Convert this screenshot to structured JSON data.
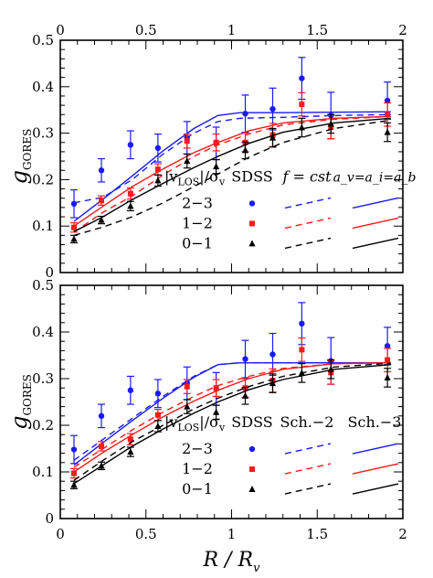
{
  "chart_data": [
    {
      "type": "line",
      "panel": "top",
      "xlim": [
        0,
        2
      ],
      "ylim": [
        0,
        0.5
      ],
      "xticks": [
        "0",
        "0.5",
        "1",
        "1.5",
        "2"
      ],
      "yticks": [
        "0.1",
        "0.2",
        "0.3",
        "0.4",
        "0.5"
      ],
      "y0_label": "0",
      "ylabel_main": "g",
      "ylabel_sub": "GORES",
      "legend": {
        "header_col1_main": "|v",
        "header_col1_sub": "LOS",
        "header_col1_rest": "|/σ",
        "header_col1_sub2": "v",
        "header_col2": "SDSS",
        "header_col3": "f = cst",
        "header_col4": "a_v=a_i=a_b",
        "rows": [
          "2−3",
          "1−2",
          "0−1"
        ]
      },
      "series": [
        {
          "name": "2−3",
          "color": "#1a1aff",
          "marker": "circle",
          "x": [
            0.08,
            0.24,
            0.41,
            0.57,
            0.74,
            0.91,
            1.08,
            1.24,
            1.41,
            1.58,
            1.91
          ],
          "y": [
            0.148,
            0.22,
            0.275,
            0.268,
            0.29,
            0.278,
            0.342,
            0.352,
            0.418,
            0.338,
            0.37
          ],
          "err": [
            0.03,
            0.025,
            0.03,
            0.03,
            0.035,
            0.035,
            0.04,
            0.045,
            0.045,
            0.05,
            0.04
          ],
          "model_dashed": [
            [
              0.08,
              0.15
            ],
            [
              0.25,
              0.162
            ],
            [
              0.42,
              0.2
            ],
            [
              0.6,
              0.255
            ],
            [
              0.78,
              0.3
            ],
            [
              0.92,
              0.325
            ],
            [
              1.05,
              0.332
            ],
            [
              1.3,
              0.334
            ],
            [
              1.6,
              0.338
            ],
            [
              1.93,
              0.34
            ]
          ],
          "model_solid": [
            [
              0.08,
              0.11
            ],
            [
              0.25,
              0.158
            ],
            [
              0.42,
              0.208
            ],
            [
              0.6,
              0.262
            ],
            [
              0.78,
              0.31
            ],
            [
              0.92,
              0.338
            ],
            [
              1.05,
              0.344
            ],
            [
              1.3,
              0.344
            ],
            [
              1.6,
              0.345
            ],
            [
              1.93,
              0.346
            ]
          ]
        },
        {
          "name": "1−2",
          "color": "#ff1a1a",
          "marker": "square",
          "x": [
            0.08,
            0.24,
            0.41,
            0.57,
            0.74,
            0.91,
            1.08,
            1.24,
            1.41,
            1.58,
            1.91
          ],
          "y": [
            0.097,
            0.155,
            0.17,
            0.222,
            0.283,
            0.28,
            0.28,
            0.296,
            0.362,
            0.313,
            0.34
          ],
          "err": [
            0.01,
            0.01,
            0.012,
            0.012,
            0.015,
            0.018,
            0.02,
            0.025,
            0.025,
            0.025,
            0.025
          ],
          "model_dashed": [
            [
              0.08,
              0.087
            ],
            [
              0.25,
              0.13
            ],
            [
              0.42,
              0.165
            ],
            [
              0.6,
              0.21
            ],
            [
              0.78,
              0.25
            ],
            [
              0.92,
              0.275
            ],
            [
              1.1,
              0.298
            ],
            [
              1.3,
              0.318
            ],
            [
              1.6,
              0.33
            ],
            [
              1.93,
              0.336
            ]
          ],
          "model_solid": [
            [
              0.08,
              0.1
            ],
            [
              0.25,
              0.143
            ],
            [
              0.42,
              0.185
            ],
            [
              0.6,
              0.223
            ],
            [
              0.78,
              0.258
            ],
            [
              0.92,
              0.28
            ],
            [
              1.1,
              0.305
            ],
            [
              1.3,
              0.322
            ],
            [
              1.6,
              0.332
            ],
            [
              1.93,
              0.336
            ]
          ]
        },
        {
          "name": "0−1",
          "color": "#000000",
          "marker": "triangle",
          "x": [
            0.08,
            0.24,
            0.41,
            0.57,
            0.74,
            0.91,
            1.08,
            1.24,
            1.41,
            1.58,
            1.91
          ],
          "y": [
            0.072,
            0.113,
            0.143,
            0.198,
            0.24,
            0.228,
            0.263,
            0.29,
            0.312,
            0.32,
            0.302
          ],
          "err": [
            0.008,
            0.008,
            0.01,
            0.012,
            0.015,
            0.015,
            0.018,
            0.02,
            0.02,
            0.02,
            0.02
          ],
          "model_dashed": [
            [
              0.08,
              0.08
            ],
            [
              0.25,
              0.098
            ],
            [
              0.42,
              0.12
            ],
            [
              0.6,
              0.15
            ],
            [
              0.78,
              0.185
            ],
            [
              0.92,
              0.212
            ],
            [
              1.1,
              0.248
            ],
            [
              1.3,
              0.28
            ],
            [
              1.6,
              0.31
            ],
            [
              1.93,
              0.328
            ]
          ],
          "model_solid": [
            [
              0.08,
              0.088
            ],
            [
              0.25,
              0.12
            ],
            [
              0.42,
              0.157
            ],
            [
              0.6,
              0.192
            ],
            [
              0.78,
              0.226
            ],
            [
              0.92,
              0.25
            ],
            [
              1.1,
              0.278
            ],
            [
              1.3,
              0.302
            ],
            [
              1.6,
              0.322
            ],
            [
              1.93,
              0.332
            ]
          ]
        }
      ]
    },
    {
      "type": "line",
      "panel": "bottom",
      "xlim": [
        0,
        2
      ],
      "ylim": [
        0,
        0.5
      ],
      "xticks": [
        "0",
        "0.5",
        "1",
        "1.5",
        "2"
      ],
      "yticks": [
        "0",
        "0.1",
        "0.2",
        "0.3",
        "0.4",
        "0.5"
      ],
      "ylabel_main": "g",
      "ylabel_sub": "GORES",
      "xlabel_main": "R / R",
      "xlabel_sub": "v",
      "legend": {
        "header_col1_main": "|v",
        "header_col1_sub": "LOS",
        "header_col1_rest": "|/σ",
        "header_col1_sub2": "v",
        "header_col2": "SDSS",
        "header_col3": "Sch.−2",
        "header_col4": "Sch.−3",
        "rows": [
          "2−3",
          "1−2",
          "0−1"
        ]
      },
      "series": [
        {
          "name": "2−3",
          "color": "#1a1aff",
          "marker": "circle",
          "x": [
            0.08,
            0.24,
            0.41,
            0.57,
            0.74,
            0.91,
            1.08,
            1.24,
            1.41,
            1.58,
            1.91
          ],
          "y": [
            0.148,
            0.22,
            0.275,
            0.268,
            0.29,
            0.278,
            0.342,
            0.352,
            0.418,
            0.338,
            0.37
          ],
          "err": [
            0.03,
            0.025,
            0.03,
            0.03,
            0.035,
            0.035,
            0.04,
            0.045,
            0.045,
            0.05,
            0.04
          ],
          "model_dashed": [
            [
              0.08,
              0.125
            ],
            [
              0.25,
              0.17
            ],
            [
              0.42,
              0.215
            ],
            [
              0.6,
              0.262
            ],
            [
              0.78,
              0.305
            ],
            [
              0.92,
              0.33
            ],
            [
              1.05,
              0.334
            ],
            [
              1.3,
              0.334
            ],
            [
              1.6,
              0.334
            ],
            [
              1.93,
              0.334
            ]
          ],
          "model_solid": [
            [
              0.08,
              0.115
            ],
            [
              0.25,
              0.163
            ],
            [
              0.42,
              0.21
            ],
            [
              0.6,
              0.258
            ],
            [
              0.78,
              0.303
            ],
            [
              0.92,
              0.33
            ],
            [
              1.05,
              0.334
            ],
            [
              1.3,
              0.334
            ],
            [
              1.6,
              0.334
            ],
            [
              1.93,
              0.334
            ]
          ]
        },
        {
          "name": "1−2",
          "color": "#ff1a1a",
          "marker": "square",
          "x": [
            0.08,
            0.24,
            0.41,
            0.57,
            0.74,
            0.91,
            1.08,
            1.24,
            1.41,
            1.58,
            1.91
          ],
          "y": [
            0.097,
            0.155,
            0.17,
            0.222,
            0.283,
            0.28,
            0.28,
            0.296,
            0.362,
            0.313,
            0.34
          ],
          "err": [
            0.01,
            0.01,
            0.012,
            0.012,
            0.015,
            0.018,
            0.02,
            0.025,
            0.025,
            0.025,
            0.025
          ],
          "model_dashed": [
            [
              0.08,
              0.11
            ],
            [
              0.25,
              0.15
            ],
            [
              0.42,
              0.19
            ],
            [
              0.6,
              0.228
            ],
            [
              0.78,
              0.262
            ],
            [
              0.92,
              0.285
            ],
            [
              1.1,
              0.305
            ],
            [
              1.3,
              0.322
            ],
            [
              1.6,
              0.332
            ],
            [
              1.93,
              0.334
            ]
          ],
          "model_solid": [
            [
              0.08,
              0.1
            ],
            [
              0.25,
              0.142
            ],
            [
              0.42,
              0.18
            ],
            [
              0.6,
              0.218
            ],
            [
              0.78,
              0.252
            ],
            [
              0.92,
              0.275
            ],
            [
              1.1,
              0.3
            ],
            [
              1.3,
              0.32
            ],
            [
              1.6,
              0.332
            ],
            [
              1.93,
              0.334
            ]
          ]
        },
        {
          "name": "0−1",
          "color": "#000000",
          "marker": "triangle",
          "x": [
            0.08,
            0.24,
            0.41,
            0.57,
            0.74,
            0.91,
            1.08,
            1.24,
            1.41,
            1.58,
            1.91
          ],
          "y": [
            0.072,
            0.113,
            0.143,
            0.198,
            0.24,
            0.228,
            0.263,
            0.29,
            0.312,
            0.32,
            0.302
          ],
          "err": [
            0.008,
            0.008,
            0.01,
            0.012,
            0.015,
            0.015,
            0.018,
            0.02,
            0.02,
            0.02,
            0.02
          ],
          "model_dashed": [
            [
              0.08,
              0.082
            ],
            [
              0.25,
              0.125
            ],
            [
              0.42,
              0.165
            ],
            [
              0.6,
              0.2
            ],
            [
              0.78,
              0.235
            ],
            [
              0.92,
              0.258
            ],
            [
              1.1,
              0.283
            ],
            [
              1.3,
              0.305
            ],
            [
              1.6,
              0.325
            ],
            [
              1.93,
              0.333
            ]
          ],
          "model_solid": [
            [
              0.08,
              0.075
            ],
            [
              0.25,
              0.115
            ],
            [
              0.42,
              0.155
            ],
            [
              0.6,
              0.192
            ],
            [
              0.78,
              0.226
            ],
            [
              0.92,
              0.25
            ],
            [
              1.1,
              0.276
            ],
            [
              1.3,
              0.298
            ],
            [
              1.6,
              0.32
            ],
            [
              1.93,
              0.33
            ]
          ]
        }
      ]
    }
  ]
}
